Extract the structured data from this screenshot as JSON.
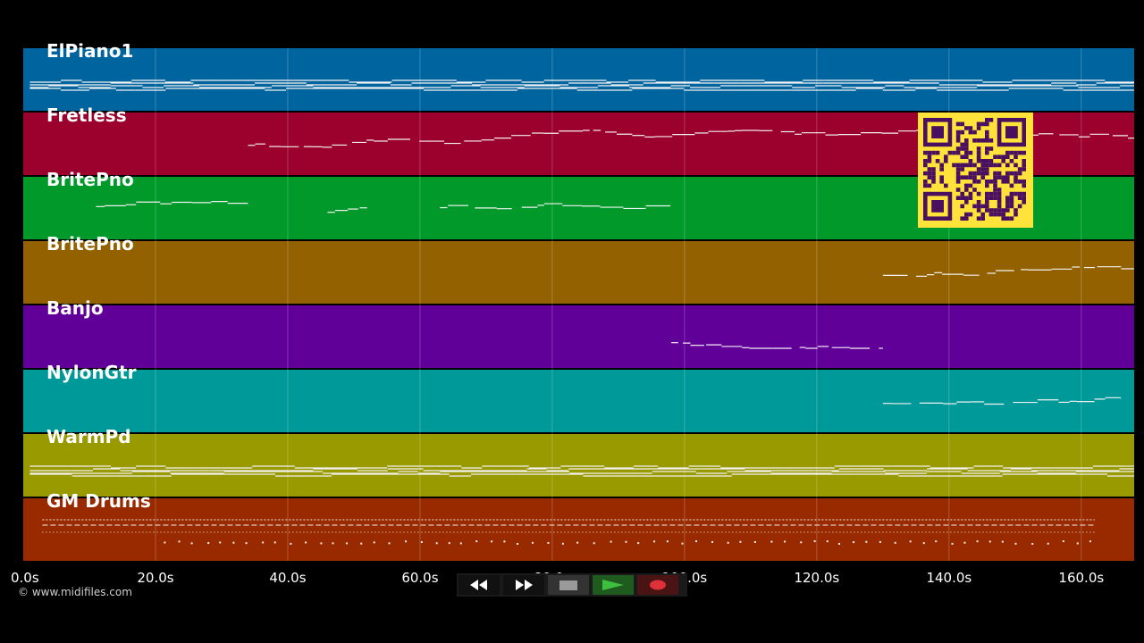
{
  "duration_s": 168,
  "tracks": [
    {
      "name": "ElPiano1",
      "color": "#00649e",
      "pattern": "dense",
      "ranges": [
        [
          1,
          168
        ]
      ]
    },
    {
      "name": "Fretless",
      "color": "#9c002d",
      "pattern": "sparse",
      "ranges": [
        [
          34,
          168
        ]
      ]
    },
    {
      "name": "BritePno",
      "color": "#00992a",
      "pattern": "sparse",
      "ranges": [
        [
          11,
          34
        ],
        [
          46,
          52
        ],
        [
          63,
          98
        ]
      ]
    },
    {
      "name": "BritePno",
      "color": "#946100",
      "pattern": "sparse",
      "ranges": [
        [
          130,
          168
        ]
      ]
    },
    {
      "name": "Banjo",
      "color": "#600099",
      "pattern": "sparse",
      "ranges": [
        [
          98,
          130
        ]
      ]
    },
    {
      "name": "NylonGtr",
      "color": "#009999",
      "pattern": "sparse",
      "ranges": [
        [
          130,
          166
        ]
      ]
    },
    {
      "name": "WarmPd",
      "color": "#999900",
      "pattern": "dense",
      "ranges": [
        [
          1,
          168
        ]
      ]
    },
    {
      "name": "GM Drums",
      "color": "#992a00",
      "pattern": "drums",
      "ranges": [
        [
          1,
          162
        ]
      ]
    }
  ],
  "timeline": {
    "ticks": [
      "0.0s",
      "20.0s",
      "40.0s",
      "60.0s",
      "80.0s",
      "100.0s",
      "120.0s",
      "140.0s",
      "160.0s"
    ],
    "tick_values": [
      0,
      20,
      40,
      60,
      80,
      100,
      120,
      140,
      160
    ]
  },
  "copyright": "© www.midifiles.com",
  "transport": {
    "rewind_icon": "rewind-icon",
    "fast_forward_icon": "fast-forward-icon",
    "stop_icon": "stop-icon",
    "play_icon": "play-icon",
    "record_icon": "record-icon",
    "play_color": "#3fbf3f",
    "record_color": "#e0303a"
  },
  "qr_code": {
    "icon": "qr-code-icon",
    "fg": "#4a1060",
    "bg": "#ffe23a"
  }
}
